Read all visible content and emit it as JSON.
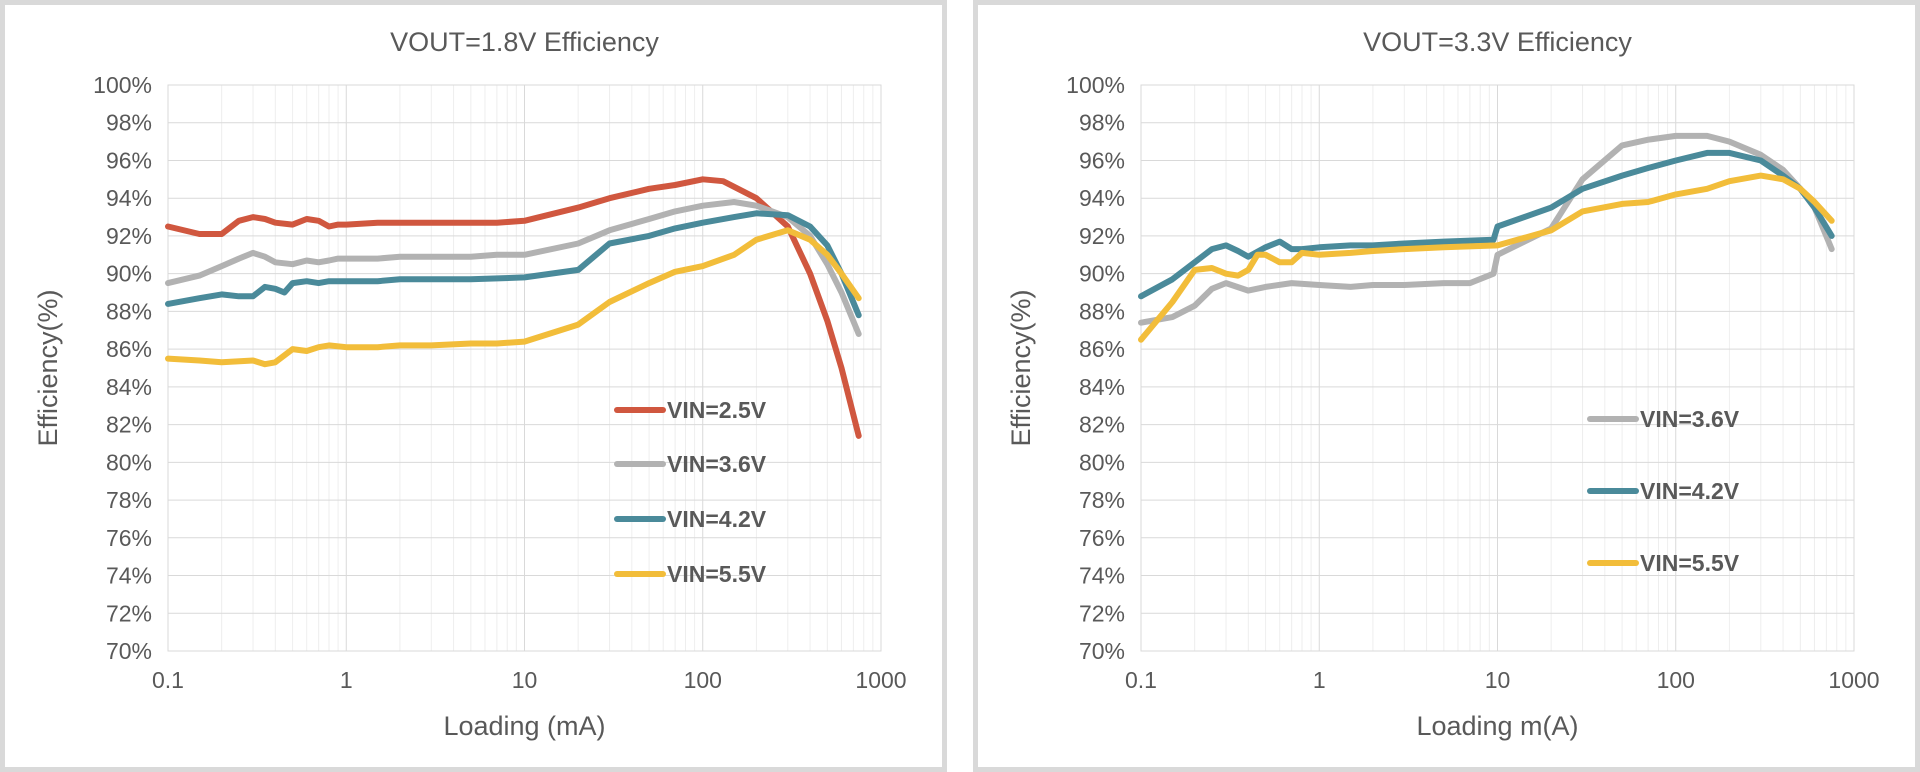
{
  "colors": {
    "vin_2_5": "#d0573f",
    "vin_3_6": "#b2b2b2",
    "vin_4_2": "#4a8a9a",
    "vin_5_5": "#f2bd3a",
    "grid_major": "#d9d9d9",
    "grid_minor": "#eeeeee",
    "text": "#595959",
    "border": "#d9d9d9"
  },
  "chart_data": [
    {
      "type": "line",
      "title": "VOUT=1.8V Efficiency",
      "xlabel": "Loading (mA)",
      "ylabel": "Efficiency(%)",
      "x_scale": "log",
      "xlim": [
        0.1,
        1000
      ],
      "ylim": [
        70,
        100
      ],
      "x_ticks": [
        "0.1",
        "1",
        "10",
        "100",
        "1000"
      ],
      "y_ticks": [
        "70%",
        "72%",
        "74%",
        "76%",
        "78%",
        "80%",
        "82%",
        "84%",
        "86%",
        "88%",
        "90%",
        "92%",
        "94%",
        "96%",
        "98%",
        "100%"
      ],
      "grid": true,
      "legend_position": "inside lower-right",
      "series": [
        {
          "name": "VIN=2.5V",
          "color": "#d0573f",
          "x": [
            0.1,
            0.15,
            0.2,
            0.25,
            0.3,
            0.35,
            0.4,
            0.5,
            0.6,
            0.7,
            0.8,
            0.9,
            1,
            1.5,
            2,
            3,
            5,
            7,
            10,
            20,
            30,
            50,
            70,
            100,
            130,
            200,
            300,
            400,
            500,
            600,
            750
          ],
          "y": [
            92.5,
            92.1,
            92.1,
            92.8,
            93.0,
            92.9,
            92.7,
            92.6,
            92.9,
            92.8,
            92.5,
            92.6,
            92.6,
            92.7,
            92.7,
            92.7,
            92.7,
            92.7,
            92.8,
            93.5,
            94.0,
            94.5,
            94.7,
            95.0,
            94.9,
            94.0,
            92.5,
            90.0,
            87.5,
            85.0,
            81.4
          ]
        },
        {
          "name": "VIN=3.6V",
          "color": "#b2b2b2",
          "x": [
            0.1,
            0.15,
            0.2,
            0.25,
            0.3,
            0.35,
            0.4,
            0.5,
            0.6,
            0.7,
            0.8,
            0.9,
            1,
            1.5,
            2,
            3,
            5,
            7,
            10,
            20,
            30,
            50,
            70,
            100,
            150,
            200,
            300,
            400,
            500,
            600,
            750
          ],
          "y": [
            89.5,
            89.9,
            90.4,
            90.8,
            91.1,
            90.9,
            90.6,
            90.5,
            90.7,
            90.6,
            90.7,
            90.8,
            90.8,
            90.8,
            90.9,
            90.9,
            90.9,
            91.0,
            91.0,
            91.6,
            92.3,
            92.9,
            93.3,
            93.6,
            93.8,
            93.6,
            93.0,
            92.0,
            90.5,
            89.0,
            86.8
          ]
        },
        {
          "name": "VIN=4.2V",
          "color": "#4a8a9a",
          "x": [
            0.1,
            0.15,
            0.2,
            0.25,
            0.3,
            0.35,
            0.4,
            0.45,
            0.5,
            0.6,
            0.7,
            0.8,
            1,
            1.5,
            2,
            3,
            5,
            10,
            20,
            30,
            50,
            70,
            100,
            150,
            200,
            300,
            400,
            500,
            600,
            750
          ],
          "y": [
            88.4,
            88.7,
            88.9,
            88.8,
            88.8,
            89.3,
            89.2,
            89.0,
            89.5,
            89.6,
            89.5,
            89.6,
            89.6,
            89.6,
            89.7,
            89.7,
            89.7,
            89.8,
            90.2,
            91.6,
            92.0,
            92.4,
            92.7,
            93.0,
            93.2,
            93.1,
            92.5,
            91.5,
            90.0,
            87.8
          ]
        },
        {
          "name": "VIN=5.5V",
          "color": "#f2bd3a",
          "x": [
            0.1,
            0.15,
            0.2,
            0.3,
            0.35,
            0.4,
            0.5,
            0.6,
            0.7,
            0.8,
            1,
            1.5,
            2,
            3,
            5,
            7,
            10,
            20,
            30,
            50,
            70,
            100,
            150,
            200,
            300,
            400,
            500,
            600,
            750
          ],
          "y": [
            85.5,
            85.4,
            85.3,
            85.4,
            85.2,
            85.3,
            86.0,
            85.9,
            86.1,
            86.2,
            86.1,
            86.1,
            86.2,
            86.2,
            86.3,
            86.3,
            86.4,
            87.3,
            88.5,
            89.5,
            90.1,
            90.4,
            91.0,
            91.8,
            92.3,
            91.8,
            91.0,
            90.0,
            88.7
          ]
        }
      ]
    },
    {
      "type": "line",
      "title": "VOUT=3.3V Efficiency",
      "xlabel": "Loading m(A)",
      "ylabel": "Efficiency(%)",
      "x_scale": "log",
      "xlim": [
        0.1,
        1000
      ],
      "ylim": [
        70,
        100
      ],
      "x_ticks": [
        "0.1",
        "1",
        "10",
        "100",
        "1000"
      ],
      "y_ticks": [
        "70%",
        "72%",
        "74%",
        "76%",
        "78%",
        "80%",
        "82%",
        "84%",
        "86%",
        "88%",
        "90%",
        "92%",
        "94%",
        "96%",
        "98%",
        "100%"
      ],
      "grid": true,
      "legend_position": "inside right",
      "series": [
        {
          "name": "VIN=3.6V",
          "color": "#b2b2b2",
          "x": [
            0.1,
            0.15,
            0.2,
            0.25,
            0.3,
            0.4,
            0.5,
            0.7,
            1,
            1.5,
            2,
            3,
            5,
            7,
            9.5,
            10,
            20,
            30,
            50,
            70,
            100,
            150,
            200,
            300,
            400,
            500,
            600,
            750
          ],
          "y": [
            87.4,
            87.7,
            88.3,
            89.2,
            89.5,
            89.1,
            89.3,
            89.5,
            89.4,
            89.3,
            89.4,
            89.4,
            89.5,
            89.5,
            90.0,
            91.0,
            92.4,
            95.0,
            96.8,
            97.1,
            97.3,
            97.3,
            97.0,
            96.3,
            95.5,
            94.5,
            93.5,
            91.3
          ]
        },
        {
          "name": "VIN=4.2V",
          "color": "#4a8a9a",
          "x": [
            0.1,
            0.15,
            0.2,
            0.25,
            0.3,
            0.35,
            0.4,
            0.5,
            0.6,
            0.7,
            0.8,
            1,
            1.5,
            2,
            3,
            5,
            9.5,
            10,
            20,
            30,
            50,
            70,
            100,
            150,
            200,
            300,
            400,
            500,
            600,
            750
          ],
          "y": [
            88.8,
            89.7,
            90.6,
            91.3,
            91.5,
            91.2,
            90.9,
            91.4,
            91.7,
            91.3,
            91.3,
            91.4,
            91.5,
            91.5,
            91.6,
            91.7,
            91.8,
            92.5,
            93.5,
            94.5,
            95.2,
            95.6,
            96.0,
            96.4,
            96.4,
            96.0,
            95.2,
            94.5,
            93.5,
            92.0
          ]
        },
        {
          "name": "VIN=5.5V",
          "color": "#f2bd3a",
          "x": [
            0.1,
            0.15,
            0.2,
            0.25,
            0.3,
            0.35,
            0.4,
            0.45,
            0.5,
            0.6,
            0.7,
            0.8,
            1,
            1.5,
            2,
            3,
            5,
            10,
            20,
            30,
            50,
            70,
            100,
            150,
            200,
            300,
            400,
            500,
            600,
            750
          ],
          "y": [
            86.5,
            88.5,
            90.2,
            90.3,
            90.0,
            89.9,
            90.2,
            91.0,
            91.0,
            90.6,
            90.6,
            91.1,
            91.0,
            91.1,
            91.2,
            91.3,
            91.4,
            91.5,
            92.3,
            93.3,
            93.7,
            93.8,
            94.2,
            94.5,
            94.9,
            95.2,
            95.0,
            94.5,
            93.8,
            92.8
          ]
        }
      ]
    }
  ]
}
